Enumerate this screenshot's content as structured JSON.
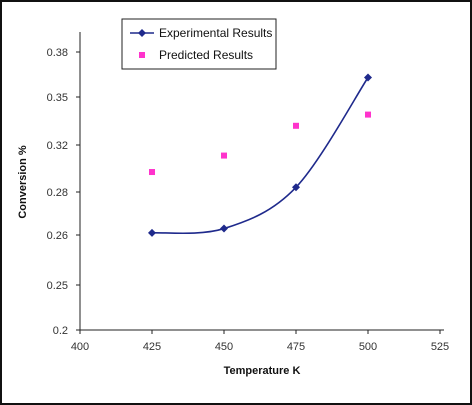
{
  "chart_data": {
    "type": "scatter",
    "title": "",
    "xlabel": "Temperature K",
    "ylabel": "Conversion %",
    "x_ticks": [
      400,
      425,
      450,
      475,
      500,
      525
    ],
    "x_tick_labels": [
      "400",
      "425",
      "450",
      "475",
      "500",
      "525"
    ],
    "y_ticks": [
      0.2,
      0.25,
      0.26,
      0.28,
      0.32,
      0.35,
      0.38
    ],
    "y_tick_labels": [
      "0.2",
      "0.25",
      "0.26",
      "0.28",
      "0.32",
      "0.35",
      "0.38"
    ],
    "legend_position": "top-left inside",
    "grid": false,
    "series": [
      {
        "name": "Experimental Results",
        "style": "line-with-diamond-markers",
        "color": "#1f2a8c",
        "x": [
          425,
          450,
          475,
          500
        ],
        "y": [
          0.261,
          0.263,
          0.284,
          0.363
        ]
      },
      {
        "name": "Predicted Results",
        "style": "square-markers",
        "color": "#ff33cc",
        "x": [
          425,
          450,
          475,
          500
        ],
        "y": [
          0.297,
          0.311,
          0.332,
          0.339
        ]
      }
    ]
  }
}
